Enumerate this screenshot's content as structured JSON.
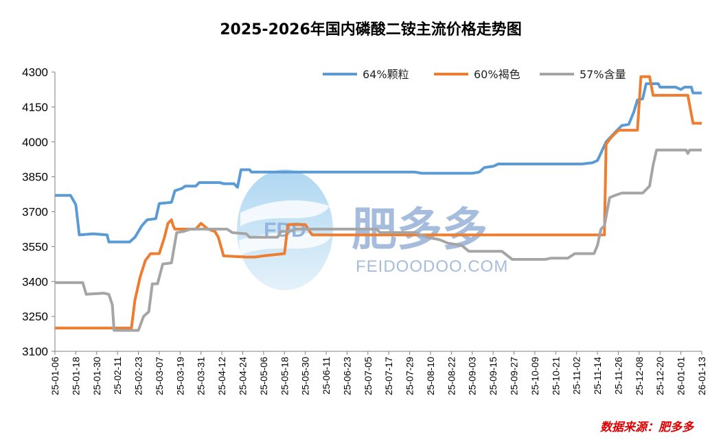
{
  "chart_data": {
    "type": "line",
    "title": "2025-2026年国内磷酸二铵主流价格走势图",
    "source": "数据来源：肥多多",
    "watermark": {
      "logo": "FDD",
      "text": "肥多多",
      "url": "FEIDOODOO.COM"
    },
    "ylim": [
      3100,
      4300
    ],
    "yticks": [
      3100,
      3250,
      3400,
      3550,
      3700,
      3850,
      4000,
      4150,
      4300
    ],
    "xlim": [
      "2025-01-06",
      "2026-01-13"
    ],
    "xticks": [
      "25-01-06",
      "25-01-18",
      "25-01-30",
      "25-02-11",
      "25-02-23",
      "25-03-07",
      "25-03-19",
      "25-03-31",
      "25-04-12",
      "25-04-24",
      "25-05-06",
      "25-05-18",
      "25-05-30",
      "25-06-11",
      "25-06-23",
      "25-07-05",
      "25-07-17",
      "25-07-29",
      "25-08-10",
      "25-08-22",
      "25-09-03",
      "25-09-15",
      "25-09-27",
      "25-10-09",
      "25-10-21",
      "25-11-02",
      "25-11-14",
      "25-11-26",
      "25-12-08",
      "25-12-20",
      "26-01-01",
      "26-01-13"
    ],
    "legend_position": "top-right",
    "grid": false,
    "series": [
      {
        "name": "64%颗粒",
        "color": "#5b9bd5",
        "points": [
          [
            "2025-01-06",
            3770
          ],
          [
            "2025-01-15",
            3770
          ],
          [
            "2025-01-18",
            3730
          ],
          [
            "2025-01-20",
            3600
          ],
          [
            "2025-01-28",
            3605
          ],
          [
            "2025-02-05",
            3600
          ],
          [
            "2025-02-06",
            3570
          ],
          [
            "2025-02-18",
            3570
          ],
          [
            "2025-02-21",
            3590
          ],
          [
            "2025-02-25",
            3640
          ],
          [
            "2025-02-28",
            3665
          ],
          [
            "2025-03-05",
            3670
          ],
          [
            "2025-03-07",
            3735
          ],
          [
            "2025-03-14",
            3740
          ],
          [
            "2025-03-16",
            3790
          ],
          [
            "2025-03-20",
            3800
          ],
          [
            "2025-03-22",
            3810
          ],
          [
            "2025-03-28",
            3810
          ],
          [
            "2025-03-30",
            3825
          ],
          [
            "2025-04-11",
            3825
          ],
          [
            "2025-04-13",
            3820
          ],
          [
            "2025-04-19",
            3820
          ],
          [
            "2025-04-21",
            3805
          ],
          [
            "2025-04-23",
            3880
          ],
          [
            "2025-04-28",
            3880
          ],
          [
            "2025-04-29",
            3870
          ],
          [
            "2025-08-01",
            3870
          ],
          [
            "2025-08-05",
            3865
          ],
          [
            "2025-09-03",
            3865
          ],
          [
            "2025-09-07",
            3870
          ],
          [
            "2025-09-10",
            3890
          ],
          [
            "2025-09-15",
            3895
          ],
          [
            "2025-09-18",
            3905
          ],
          [
            "2025-11-05",
            3905
          ],
          [
            "2025-11-11",
            3910
          ],
          [
            "2025-11-14",
            3920
          ],
          [
            "2025-11-19",
            4000
          ],
          [
            "2025-11-24",
            4040
          ],
          [
            "2025-11-28",
            4070
          ],
          [
            "2025-12-02",
            4075
          ],
          [
            "2025-12-05",
            4130
          ],
          [
            "2025-12-07",
            4180
          ],
          [
            "2025-12-10",
            4185
          ],
          [
            "2025-12-12",
            4250
          ],
          [
            "2025-12-19",
            4250
          ],
          [
            "2025-12-20",
            4235
          ],
          [
            "2025-12-29",
            4235
          ],
          [
            "2026-01-01",
            4225
          ],
          [
            "2026-01-03",
            4235
          ],
          [
            "2026-01-07",
            4235
          ],
          [
            "2026-01-08",
            4210
          ],
          [
            "2026-01-13",
            4210
          ]
        ]
      },
      {
        "name": "60%褐色",
        "color": "#ed7d31",
        "points": [
          [
            "2025-01-06",
            3200
          ],
          [
            "2025-02-19",
            3200
          ],
          [
            "2025-02-21",
            3320
          ],
          [
            "2025-02-24",
            3420
          ],
          [
            "2025-02-27",
            3490
          ],
          [
            "2025-03-02",
            3520
          ],
          [
            "2025-03-07",
            3520
          ],
          [
            "2025-03-10",
            3590
          ],
          [
            "2025-03-12",
            3650
          ],
          [
            "2025-03-14",
            3665
          ],
          [
            "2025-03-15",
            3640
          ],
          [
            "2025-03-16",
            3625
          ],
          [
            "2025-03-28",
            3625
          ],
          [
            "2025-03-31",
            3650
          ],
          [
            "2025-04-04",
            3625
          ],
          [
            "2025-04-08",
            3615
          ],
          [
            "2025-04-10",
            3590
          ],
          [
            "2025-04-13",
            3510
          ],
          [
            "2025-04-26",
            3505
          ],
          [
            "2025-05-01",
            3505
          ],
          [
            "2025-05-06",
            3510
          ],
          [
            "2025-05-12",
            3515
          ],
          [
            "2025-05-18",
            3520
          ],
          [
            "2025-05-20",
            3645
          ],
          [
            "2025-05-25",
            3645
          ],
          [
            "2025-05-30",
            3645
          ],
          [
            "2025-06-02",
            3610
          ],
          [
            "2025-06-03",
            3600
          ],
          [
            "2025-11-18",
            3600
          ],
          [
            "2025-11-19",
            3990
          ],
          [
            "2025-11-22",
            4020
          ],
          [
            "2025-11-26",
            4050
          ],
          [
            "2025-12-07",
            4050
          ],
          [
            "2025-12-09",
            4280
          ],
          [
            "2025-12-14",
            4280
          ],
          [
            "2025-12-16",
            4200
          ],
          [
            "2026-01-05",
            4200
          ],
          [
            "2026-01-08",
            4080
          ],
          [
            "2026-01-13",
            4080
          ]
        ]
      },
      {
        "name": "57%含量",
        "color": "#a5a5a5",
        "points": [
          [
            "2025-01-06",
            3395
          ],
          [
            "2025-01-22",
            3395
          ],
          [
            "2025-01-24",
            3345
          ],
          [
            "2025-02-03",
            3350
          ],
          [
            "2025-02-06",
            3345
          ],
          [
            "2025-02-08",
            3300
          ],
          [
            "2025-02-09",
            3190
          ],
          [
            "2025-02-23",
            3190
          ],
          [
            "2025-02-26",
            3250
          ],
          [
            "2025-03-01",
            3270
          ],
          [
            "2025-03-03",
            3390
          ],
          [
            "2025-03-06",
            3390
          ],
          [
            "2025-03-09",
            3475
          ],
          [
            "2025-03-14",
            3480
          ],
          [
            "2025-03-17",
            3610
          ],
          [
            "2025-03-21",
            3615
          ],
          [
            "2025-03-25",
            3625
          ],
          [
            "2025-04-15",
            3625
          ],
          [
            "2025-04-18",
            3610
          ],
          [
            "2025-04-26",
            3605
          ],
          [
            "2025-04-28",
            3590
          ],
          [
            "2025-05-14",
            3590
          ],
          [
            "2025-05-16",
            3615
          ],
          [
            "2025-05-21",
            3615
          ],
          [
            "2025-05-24",
            3625
          ],
          [
            "2025-07-10",
            3625
          ],
          [
            "2025-07-12",
            3610
          ],
          [
            "2025-08-01",
            3610
          ],
          [
            "2025-08-08",
            3590
          ],
          [
            "2025-08-15",
            3580
          ],
          [
            "2025-08-20",
            3565
          ],
          [
            "2025-08-28",
            3555
          ],
          [
            "2025-09-01",
            3530
          ],
          [
            "2025-09-20",
            3530
          ],
          [
            "2025-09-26",
            3495
          ],
          [
            "2025-10-15",
            3495
          ],
          [
            "2025-10-18",
            3500
          ],
          [
            "2025-10-28",
            3500
          ],
          [
            "2025-11-01",
            3520
          ],
          [
            "2025-11-12",
            3520
          ],
          [
            "2025-11-14",
            3555
          ],
          [
            "2025-11-16",
            3625
          ],
          [
            "2025-11-18",
            3640
          ],
          [
            "2025-11-21",
            3760
          ],
          [
            "2025-11-24",
            3770
          ],
          [
            "2025-11-28",
            3780
          ],
          [
            "2025-12-10",
            3780
          ],
          [
            "2025-12-14",
            3810
          ],
          [
            "2025-12-16",
            3900
          ],
          [
            "2025-12-18",
            3965
          ],
          [
            "2026-01-04",
            3965
          ],
          [
            "2026-01-05",
            3950
          ],
          [
            "2026-01-06",
            3965
          ],
          [
            "2026-01-13",
            3965
          ]
        ]
      }
    ]
  }
}
